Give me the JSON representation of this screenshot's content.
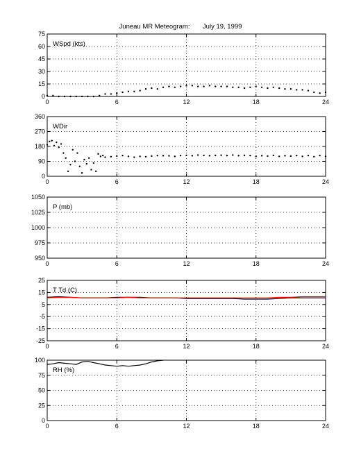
{
  "title": "Juneau MR Meteogram:       July 19, 1999",
  "colors": {
    "primary": "#000000",
    "dewpoint": "#ff0000"
  },
  "chart_data": [
    {
      "type": "scatter",
      "label": "WSpd (kts)",
      "ylim": [
        0,
        75
      ],
      "yticks": [
        0,
        15,
        30,
        45,
        60,
        75
      ],
      "xlim": [
        0,
        24
      ],
      "xticks": [
        0,
        6,
        12,
        18,
        24
      ],
      "grid": true,
      "series": [
        {
          "color": "#000000",
          "x": [
            0,
            0.5,
            1,
            1.5,
            2,
            2.5,
            3,
            3.5,
            4,
            4.5,
            5,
            5.5,
            6,
            6.5,
            7,
            7.5,
            8,
            8.5,
            9,
            9.5,
            10,
            10.5,
            11,
            11.5,
            12,
            12.5,
            13,
            13.5,
            14,
            14.5,
            15,
            15.5,
            16,
            16.5,
            17,
            17.5,
            18,
            18.5,
            19,
            19.5,
            20,
            20.5,
            21,
            21.5,
            22,
            22.5,
            23,
            23.5,
            24
          ],
          "y": [
            1,
            1,
            0,
            0,
            0,
            0,
            0,
            0,
            0,
            1,
            3,
            3,
            4,
            5,
            6,
            6,
            7,
            9,
            10,
            9,
            11,
            12,
            11,
            12,
            13,
            13,
            12,
            12,
            13,
            12,
            12,
            12,
            11,
            11,
            10,
            11,
            12,
            11,
            10,
            11,
            10,
            9,
            9,
            8,
            8,
            7,
            5,
            4,
            5
          ]
        }
      ]
    },
    {
      "type": "scatter",
      "label": "WDir",
      "ylim": [
        0,
        360
      ],
      "yticks": [
        0,
        90,
        180,
        270,
        360
      ],
      "xlim": [
        0,
        24
      ],
      "xticks": [
        0,
        6,
        12,
        18,
        24
      ],
      "grid": true,
      "series": [
        {
          "color": "#000000",
          "x": [
            0,
            0.2,
            0.4,
            0.6,
            0.8,
            1,
            1.2,
            1.4,
            1.6,
            1.8,
            2,
            2.2,
            2.4,
            2.6,
            2.8,
            3,
            3.2,
            3.4,
            3.6,
            3.8,
            4,
            4.2,
            4.4,
            4.6,
            4.8,
            5,
            5.5,
            6,
            6.5,
            7,
            7.5,
            8,
            8.5,
            9,
            9.5,
            10,
            10.5,
            11,
            11.5,
            12,
            12.5,
            13,
            13.5,
            14,
            14.5,
            15,
            15.5,
            16,
            16.5,
            17,
            17.5,
            18,
            18.5,
            19,
            19.5,
            20,
            20.5,
            21,
            21.5,
            22,
            22.5,
            23,
            23.5,
            24
          ],
          "y": [
            190,
            210,
            215,
            185,
            205,
            175,
            195,
            140,
            110,
            30,
            70,
            160,
            90,
            140,
            60,
            20,
            100,
            75,
            110,
            40,
            80,
            30,
            135,
            120,
            125,
            115,
            118,
            122,
            125,
            120,
            115,
            120,
            118,
            122,
            125,
            124,
            123,
            120,
            125,
            126,
            124,
            128,
            126,
            124,
            126,
            127,
            125,
            128,
            124,
            126,
            125,
            120,
            124,
            122,
            126,
            120,
            124,
            122,
            125,
            120,
            125,
            118,
            125,
            120
          ]
        }
      ]
    },
    {
      "type": "scatter",
      "label": "P (mb)",
      "ylim": [
        950,
        1050
      ],
      "yticks": [
        950,
        975,
        1000,
        1025,
        1050
      ],
      "xlim": [
        0,
        24
      ],
      "xticks": [
        0,
        6,
        12,
        18,
        24
      ],
      "grid": true,
      "series": []
    },
    {
      "type": "line",
      "label": "T Td (C)",
      "ylim": [
        -25,
        25
      ],
      "yticks": [
        -25,
        -15,
        -5,
        5,
        15,
        25
      ],
      "xlim": [
        0,
        24
      ],
      "xticks": [
        0,
        6,
        12,
        18,
        24
      ],
      "grid": true,
      "series": [
        {
          "color": "#000000",
          "x": [
            0,
            1,
            2,
            3,
            4,
            5,
            6,
            7,
            8,
            9,
            10,
            11,
            12,
            13,
            14,
            15,
            16,
            17,
            18,
            19,
            20,
            21,
            22,
            23,
            24
          ],
          "y": [
            11,
            11.5,
            11,
            10.5,
            10.5,
            10.5,
            11,
            11,
            11,
            10.5,
            10.5,
            10.5,
            10,
            10,
            10,
            10,
            10,
            9.5,
            9.5,
            9.5,
            10,
            10.5,
            10.5,
            10.5,
            10.5
          ]
        },
        {
          "color": "#ff0000",
          "x": [
            0,
            1,
            2,
            3,
            4,
            5,
            6,
            7,
            8,
            9,
            10,
            11,
            12,
            13,
            14,
            15,
            16,
            17,
            18,
            19,
            20,
            21,
            22,
            23,
            24
          ],
          "y": [
            10.5,
            11,
            11,
            10.5,
            10.5,
            10.5,
            10.5,
            11,
            10.5,
            10.5,
            10.5,
            10.5,
            10.5,
            10.5,
            10.5,
            10.5,
            10.5,
            10.5,
            10.5,
            10.5,
            11,
            11,
            11.5,
            11.5,
            11.5
          ]
        }
      ]
    },
    {
      "type": "line",
      "label": "RH (%)",
      "ylim": [
        0,
        100
      ],
      "yticks": [
        0,
        25,
        50,
        75,
        100
      ],
      "xlim": [
        0,
        24
      ],
      "xticks": [
        0,
        6,
        12,
        18,
        24
      ],
      "grid": true,
      "series": [
        {
          "color": "#000000",
          "x": [
            0,
            0.5,
            1,
            1.5,
            2,
            2.5,
            3,
            3.5,
            4,
            4.5,
            5,
            5.5,
            6,
            6.5,
            7,
            7.5,
            8,
            8.5,
            9,
            9.5,
            10
          ],
          "y": [
            93,
            94,
            96,
            95,
            94,
            93,
            97,
            98,
            96,
            94,
            92,
            91,
            90,
            91,
            90,
            91,
            92,
            94,
            97,
            99,
            100
          ]
        }
      ]
    }
  ]
}
